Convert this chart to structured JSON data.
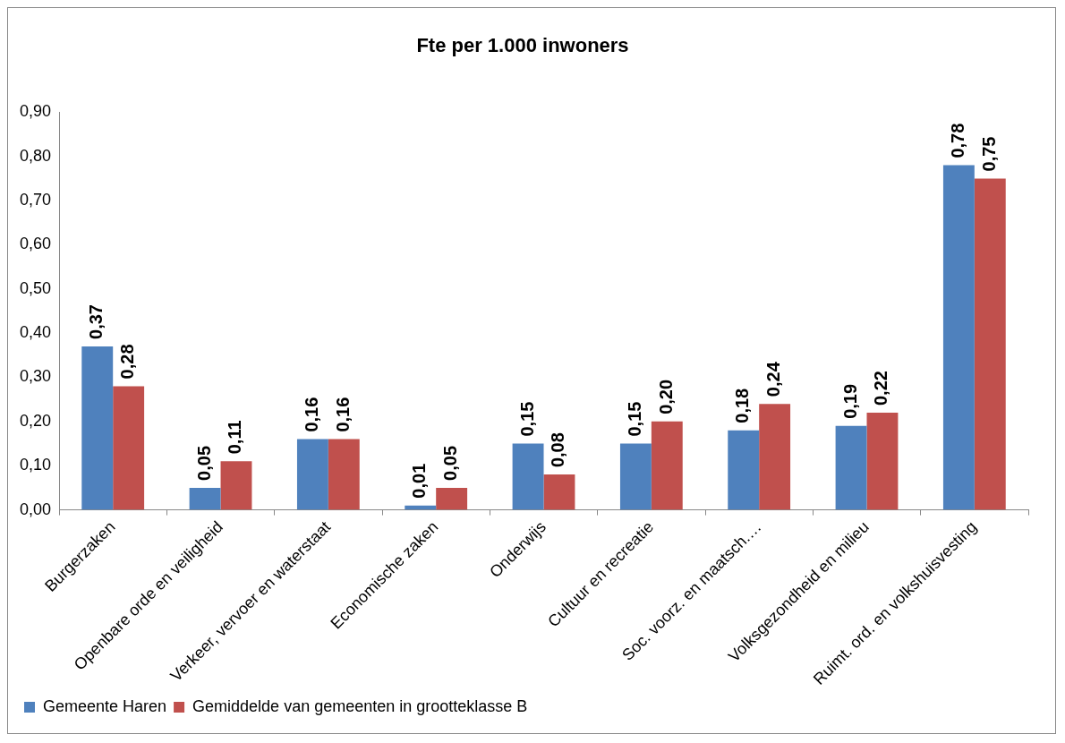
{
  "chart_data": {
    "type": "bar",
    "title": "Fte per 1.000 inwoners",
    "categories": [
      "Burgerzaken",
      "Openbare orde en veiligheid",
      "Verkeer, vervoer en waterstaat",
      "Economische zaken",
      "Onderwijs",
      "Cultuur en recreatie",
      "Soc. voorz. en maatsch.…",
      "Volksgezondheid en milieu",
      "Ruimt. ord. en volkshuisvesting"
    ],
    "series": [
      {
        "name": "Gemeente Haren",
        "color": "#4f81bd",
        "values": [
          0.37,
          0.05,
          0.16,
          0.01,
          0.15,
          0.15,
          0.18,
          0.19,
          0.78
        ],
        "value_labels": [
          "0,37",
          "0,05",
          "0,16",
          "0,01",
          "0,15",
          "0,15",
          "0,18",
          "0,19",
          "0,78"
        ]
      },
      {
        "name": "Gemiddelde van gemeenten in grootteklasse B",
        "color": "#c0504d",
        "values": [
          0.28,
          0.11,
          0.16,
          0.05,
          0.08,
          0.2,
          0.24,
          0.22,
          0.75
        ],
        "value_labels": [
          "0,28",
          "0,11",
          "0,16",
          "0,05",
          "0,08",
          "0,20",
          "0,24",
          "0,22",
          "0,75"
        ]
      }
    ],
    "ylim": [
      0,
      0.9
    ],
    "yticks": [
      {
        "value": 0,
        "label": "0,00"
      },
      {
        "value": 0.1,
        "label": "0,10"
      },
      {
        "value": 0.2,
        "label": "0,20"
      },
      {
        "value": 0.3,
        "label": "0,30"
      },
      {
        "value": 0.4,
        "label": "0,40"
      },
      {
        "value": 0.5,
        "label": "0,50"
      },
      {
        "value": 0.6,
        "label": "0,60"
      },
      {
        "value": 0.7,
        "label": "0,70"
      },
      {
        "value": 0.8,
        "label": "0,80"
      },
      {
        "value": 0.9,
        "label": "0,90"
      }
    ],
    "grid": false,
    "legend": "bottom"
  }
}
